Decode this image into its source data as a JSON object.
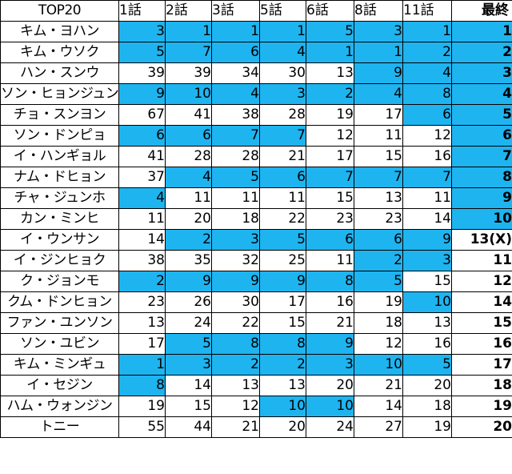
{
  "header": {
    "title": "TOP20",
    "rounds": [
      "1話",
      "2話",
      "3話",
      "5話",
      "6話",
      "8話",
      "11話"
    ],
    "final": "最終"
  },
  "highlight_color": "#1EB4F0",
  "rows": [
    {
      "name": "キム・ヨハン",
      "ranks": [
        "3",
        "1",
        "1",
        "1",
        "5",
        "3",
        "1"
      ],
      "highlighted": [
        1,
        1,
        1,
        1,
        1,
        1,
        1
      ],
      "final": "1",
      "final_highlighted": 1
    },
    {
      "name": "キム・ウソク",
      "ranks": [
        "5",
        "7",
        "6",
        "4",
        "1",
        "1",
        "2"
      ],
      "highlighted": [
        1,
        1,
        1,
        1,
        1,
        1,
        1
      ],
      "final": "2",
      "final_highlighted": 1
    },
    {
      "name": "ハン・スンウ",
      "ranks": [
        "39",
        "39",
        "34",
        "30",
        "13",
        "9",
        "4"
      ],
      "highlighted": [
        0,
        0,
        0,
        0,
        0,
        1,
        1
      ],
      "final": "3",
      "final_highlighted": 1
    },
    {
      "name": "ソン・ヒョンジュン",
      "ranks": [
        "9",
        "10",
        "4",
        "3",
        "2",
        "4",
        "8"
      ],
      "highlighted": [
        1,
        1,
        1,
        1,
        1,
        1,
        1
      ],
      "final": "4",
      "final_highlighted": 1
    },
    {
      "name": "チョ・スンヨン",
      "ranks": [
        "67",
        "41",
        "38",
        "28",
        "19",
        "17",
        "6"
      ],
      "highlighted": [
        0,
        0,
        0,
        0,
        0,
        0,
        1
      ],
      "final": "5",
      "final_highlighted": 1
    },
    {
      "name": "ソン・ドンピョ",
      "ranks": [
        "6",
        "6",
        "7",
        "7",
        "12",
        "11",
        "12"
      ],
      "highlighted": [
        1,
        1,
        1,
        1,
        0,
        0,
        0
      ],
      "final": "6",
      "final_highlighted": 1
    },
    {
      "name": "イ・ハンギョル",
      "ranks": [
        "41",
        "28",
        "28",
        "21",
        "17",
        "15",
        "16"
      ],
      "highlighted": [
        0,
        0,
        0,
        0,
        0,
        0,
        0
      ],
      "final": "7",
      "final_highlighted": 1
    },
    {
      "name": "ナム・ドヒョン",
      "ranks": [
        "37",
        "4",
        "5",
        "6",
        "7",
        "7",
        "7"
      ],
      "highlighted": [
        0,
        1,
        1,
        1,
        1,
        1,
        1
      ],
      "final": "8",
      "final_highlighted": 1
    },
    {
      "name": "チャ・ジュンホ",
      "ranks": [
        "4",
        "11",
        "11",
        "11",
        "15",
        "13",
        "11"
      ],
      "highlighted": [
        1,
        0,
        0,
        0,
        0,
        0,
        0
      ],
      "final": "9",
      "final_highlighted": 1
    },
    {
      "name": "カン・ミンヒ",
      "ranks": [
        "11",
        "20",
        "18",
        "22",
        "23",
        "23",
        "14"
      ],
      "highlighted": [
        0,
        0,
        0,
        0,
        0,
        0,
        0
      ],
      "final": "10",
      "final_highlighted": 1
    },
    {
      "name": "イ・ウンサン",
      "ranks": [
        "14",
        "2",
        "3",
        "5",
        "6",
        "6",
        "9"
      ],
      "highlighted": [
        0,
        1,
        1,
        1,
        1,
        1,
        1
      ],
      "final": "13(X)",
      "final_highlighted": 0
    },
    {
      "name": "イ・ジンヒョク",
      "ranks": [
        "38",
        "35",
        "32",
        "25",
        "11",
        "2",
        "3"
      ],
      "highlighted": [
        0,
        0,
        0,
        0,
        0,
        1,
        1
      ],
      "final": "11",
      "final_highlighted": 0
    },
    {
      "name": "ク・ジョンモ",
      "ranks": [
        "2",
        "9",
        "9",
        "9",
        "8",
        "5",
        "15"
      ],
      "highlighted": [
        1,
        1,
        1,
        1,
        1,
        1,
        0
      ],
      "final": "12",
      "final_highlighted": 0
    },
    {
      "name": "クム・ドンヒョン",
      "ranks": [
        "23",
        "26",
        "30",
        "17",
        "16",
        "19",
        "10"
      ],
      "highlighted": [
        0,
        0,
        0,
        0,
        0,
        0,
        1
      ],
      "final": "14",
      "final_highlighted": 0
    },
    {
      "name": "ファン・ユンソン",
      "ranks": [
        "13",
        "24",
        "22",
        "15",
        "21",
        "18",
        "13"
      ],
      "highlighted": [
        0,
        0,
        0,
        0,
        0,
        0,
        0
      ],
      "final": "15",
      "final_highlighted": 0
    },
    {
      "name": "ソン・ユビン",
      "ranks": [
        "17",
        "5",
        "8",
        "8",
        "9",
        "12",
        "16"
      ],
      "highlighted": [
        0,
        1,
        1,
        1,
        1,
        0,
        0
      ],
      "final": "16",
      "final_highlighted": 0
    },
    {
      "name": "キム・ミンギュ",
      "ranks": [
        "1",
        "3",
        "2",
        "2",
        "3",
        "10",
        "5"
      ],
      "highlighted": [
        1,
        1,
        1,
        1,
        1,
        1,
        1
      ],
      "final": "17",
      "final_highlighted": 0
    },
    {
      "name": "イ・セジン",
      "ranks": [
        "8",
        "14",
        "13",
        "13",
        "20",
        "21",
        "20"
      ],
      "highlighted": [
        1,
        0,
        0,
        0,
        0,
        0,
        0
      ],
      "final": "18",
      "final_highlighted": 0
    },
    {
      "name": "ハム・ウォンジン",
      "ranks": [
        "19",
        "15",
        "12",
        "10",
        "10",
        "14",
        "18"
      ],
      "highlighted": [
        0,
        0,
        0,
        1,
        1,
        0,
        0
      ],
      "final": "19",
      "final_highlighted": 0
    },
    {
      "name": "トニー",
      "ranks": [
        "55",
        "44",
        "21",
        "20",
        "24",
        "27",
        "19"
      ],
      "highlighted": [
        0,
        0,
        0,
        0,
        0,
        0,
        0
      ],
      "final": "20",
      "final_highlighted": 0
    }
  ]
}
